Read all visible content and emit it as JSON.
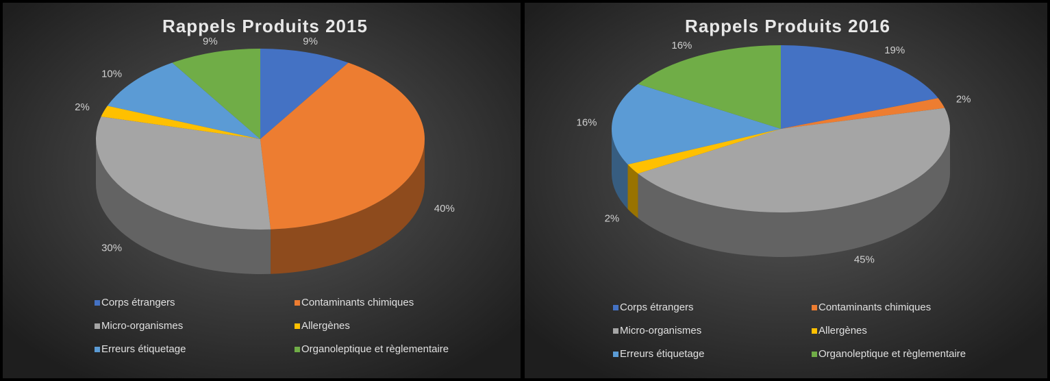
{
  "chart_data": [
    {
      "type": "pie",
      "title": "Rappels Produits 2015",
      "categories": [
        "Corps étrangers",
        "Contaminants chimiques",
        "Micro-organismes",
        "Allergènes",
        "Erreurs étiquetage",
        "Organoleptique et règlementaire"
      ],
      "values": [
        9,
        40,
        30,
        2,
        10,
        9
      ],
      "value_labels": [
        "9%",
        "40%",
        "30%",
        "2%",
        "10%",
        "9%"
      ],
      "colors": [
        "#4472c4",
        "#ed7d31",
        "#a5a5a5",
        "#ffc000",
        "#5b9bd5",
        "#70ad47"
      ]
    },
    {
      "type": "pie",
      "title": "Rappels Produits 2016",
      "categories": [
        "Corps étrangers",
        "Contaminants chimiques",
        "Micro-organismes",
        "Allergènes",
        "Erreurs étiquetage",
        "Organoleptique et règlementaire"
      ],
      "values": [
        19,
        2,
        45,
        2,
        16,
        16
      ],
      "value_labels": [
        "19%",
        "2%",
        "45%",
        "2%",
        "16%",
        "16%"
      ],
      "colors": [
        "#4472c4",
        "#ed7d31",
        "#a5a5a5",
        "#ffc000",
        "#5b9bd5",
        "#70ad47"
      ]
    }
  ]
}
